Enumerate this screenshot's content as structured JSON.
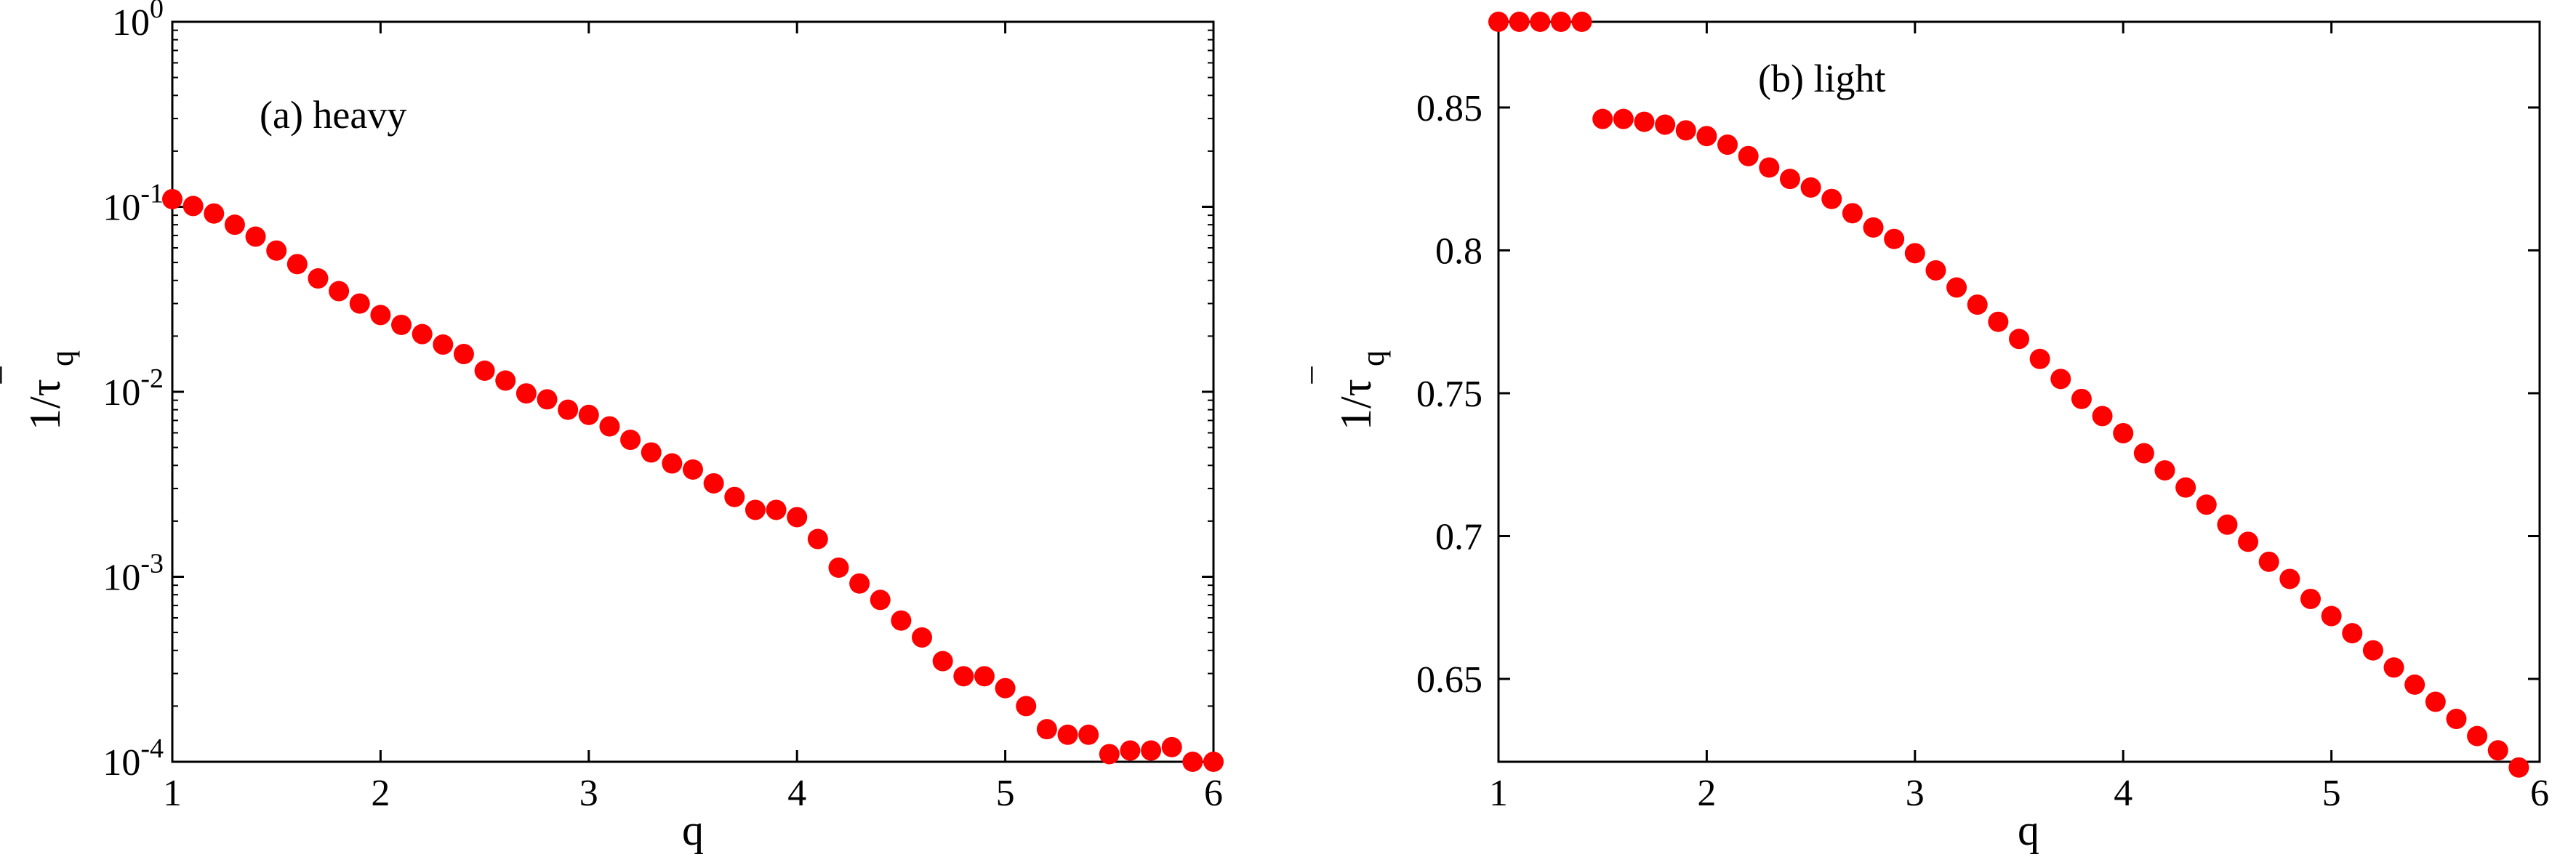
{
  "colors": {
    "marker": "#ff0000",
    "axes": "#000000",
    "background": "#ffffff"
  },
  "chart_data": [
    {
      "type": "scatter",
      "annotation": "(a) heavy",
      "xlabel": "q",
      "ylabel_main": "1/τ",
      "ylabel_bar": "‾",
      "ylabel_sub": "q",
      "yscale": "log",
      "xlim": [
        1,
        6
      ],
      "ylim": [
        0.0001,
        1
      ],
      "grid": false,
      "xticks": [
        1,
        2,
        3,
        4,
        5,
        6
      ],
      "xtick_labels": [
        "1",
        "2",
        "3",
        "4",
        "5",
        "6"
      ],
      "yticks": [
        0.0001,
        0.001,
        0.01,
        0.1,
        1
      ],
      "ytick_labels": [
        {
          "base": "10",
          "exp": "-4"
        },
        {
          "base": "10",
          "exp": "-3"
        },
        {
          "base": "10",
          "exp": "-2"
        },
        {
          "base": "10",
          "exp": "-1"
        },
        {
          "base": "10",
          "exp": "0"
        }
      ],
      "marker_color": "#ff0000",
      "x": [
        1.0,
        1.1,
        1.2,
        1.3,
        1.4,
        1.5,
        1.6,
        1.7,
        1.8,
        1.9,
        2.0,
        2.1,
        2.2,
        2.3,
        2.4,
        2.5,
        2.6,
        2.7,
        2.8,
        2.9,
        3.0,
        3.1,
        3.2,
        3.3,
        3.4,
        3.5,
        3.6,
        3.7,
        3.8,
        3.9,
        4.0,
        4.1,
        4.2,
        4.3,
        4.4,
        4.5,
        4.6,
        4.7,
        4.8,
        4.9,
        5.0,
        5.1,
        5.2,
        5.3,
        5.4,
        5.5,
        5.6,
        5.7,
        5.8,
        5.9,
        6.0
      ],
      "y": [
        0.11,
        0.101,
        0.092,
        0.08,
        0.069,
        0.058,
        0.049,
        0.041,
        0.035,
        0.03,
        0.026,
        0.023,
        0.0205,
        0.018,
        0.016,
        0.013,
        0.0115,
        0.0098,
        0.0091,
        0.008,
        0.0075,
        0.0065,
        0.0055,
        0.0047,
        0.0041,
        0.0038,
        0.0032,
        0.0027,
        0.0023,
        0.0023,
        0.0021,
        0.0016,
        0.00112,
        0.00092,
        0.00075,
        0.00058,
        0.00047,
        0.00035,
        0.00029,
        0.00029,
        0.00025,
        0.0002,
        0.00015,
        0.00014,
        0.00014,
        0.00011,
        0.000115,
        0.000115,
        0.00012,
        0.0001,
        0.0001
      ]
    },
    {
      "type": "scatter",
      "annotation": "(b) light",
      "xlabel": "q",
      "ylabel_main": "1/τ",
      "ylabel_bar": "‾",
      "ylabel_sub": "q",
      "yscale": "linear",
      "xlim": [
        1,
        6
      ],
      "ylim": [
        0.621,
        0.88
      ],
      "grid": false,
      "xticks": [
        1,
        2,
        3,
        4,
        5,
        6
      ],
      "xtick_labels": [
        "1",
        "2",
        "3",
        "4",
        "5",
        "6"
      ],
      "yticks": [
        0.65,
        0.7,
        0.75,
        0.8,
        0.85
      ],
      "ytick_labels": [
        "0.65",
        "0.7",
        "0.75",
        "0.8",
        "0.85"
      ],
      "marker_color": "#ff0000",
      "x": [
        1.0,
        1.1,
        1.2,
        1.3,
        1.4,
        1.5,
        1.6,
        1.7,
        1.8,
        1.9,
        2.0,
        2.1,
        2.2,
        2.3,
        2.4,
        2.5,
        2.6,
        2.7,
        2.8,
        2.9,
        3.0,
        3.1,
        3.2,
        3.3,
        3.4,
        3.5,
        3.6,
        3.7,
        3.8,
        3.9,
        4.0,
        4.1,
        4.2,
        4.3,
        4.4,
        4.5,
        4.6,
        4.7,
        4.8,
        4.9,
        5.0,
        5.1,
        5.2,
        5.3,
        5.4,
        5.5,
        5.6,
        5.7,
        5.8,
        5.9
      ],
      "y": [
        0.88,
        0.88,
        0.88,
        0.88,
        0.88,
        0.846,
        0.846,
        0.845,
        0.844,
        0.842,
        0.84,
        0.837,
        0.833,
        0.829,
        0.825,
        0.822,
        0.818,
        0.813,
        0.808,
        0.804,
        0.799,
        0.793,
        0.787,
        0.781,
        0.775,
        0.769,
        0.762,
        0.755,
        0.748,
        0.742,
        0.736,
        0.729,
        0.723,
        0.717,
        0.711,
        0.704,
        0.698,
        0.691,
        0.685,
        0.678,
        0.672,
        0.666,
        0.66,
        0.654,
        0.648,
        0.642,
        0.636,
        0.63,
        0.625,
        0.619
      ]
    }
  ]
}
